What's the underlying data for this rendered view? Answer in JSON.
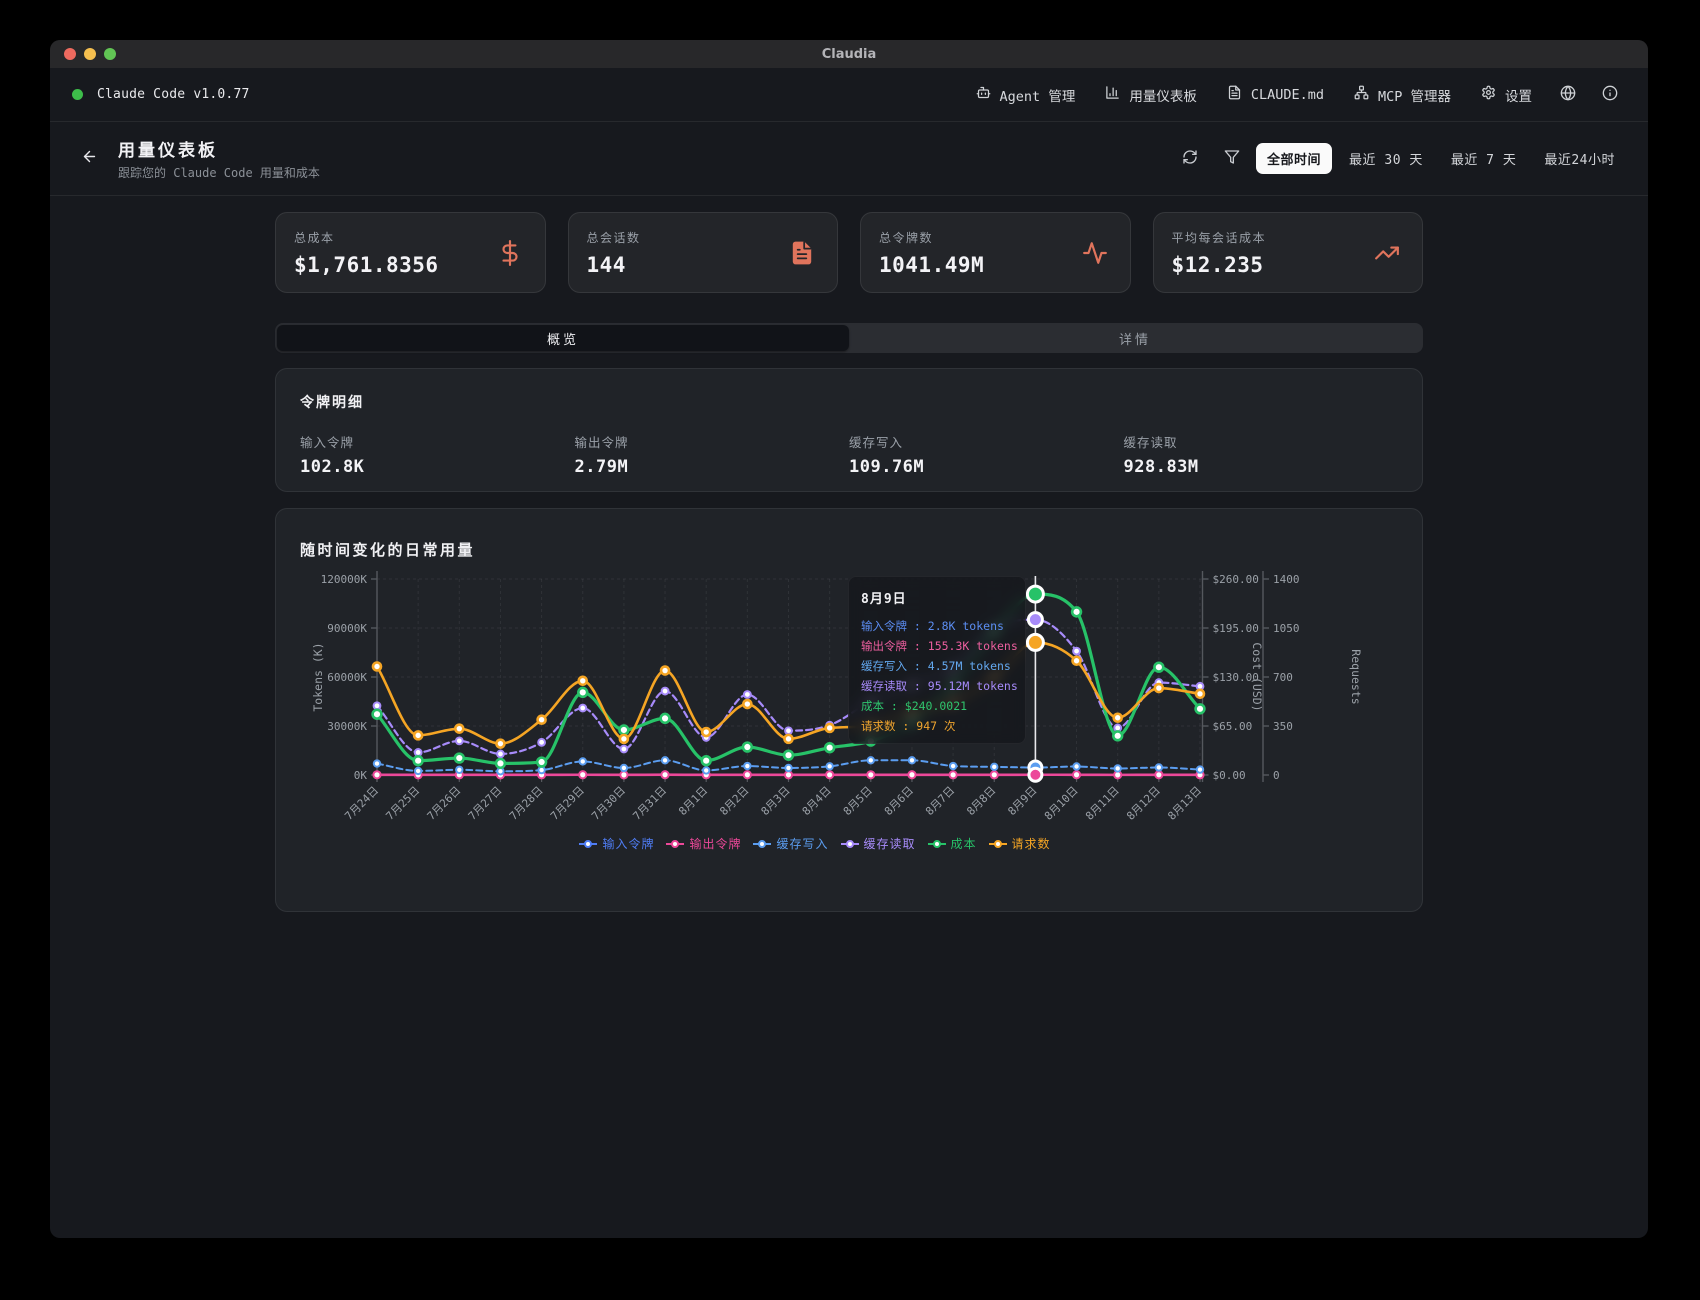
{
  "window": {
    "title": "Claudia"
  },
  "navbar": {
    "app_version": "Claude Code v1.0.77",
    "items": [
      {
        "label": "Agent 管理",
        "icon": "bot-icon"
      },
      {
        "label": "用量仪表板",
        "icon": "bar-chart-icon"
      },
      {
        "label": "CLAUDE.md",
        "icon": "file-text-icon"
      },
      {
        "label": "MCP 管理器",
        "icon": "network-icon"
      },
      {
        "label": "设置",
        "icon": "gear-icon"
      }
    ]
  },
  "header": {
    "title": "用量仪表板",
    "subtitle": "跟踪您的 Claude Code 用量和成本",
    "time_ranges": [
      {
        "label": "全部时间",
        "active": true
      },
      {
        "label": "最近 30 天",
        "active": false
      },
      {
        "label": "最近 7 天",
        "active": false
      },
      {
        "label": "最近24小时",
        "active": false
      }
    ]
  },
  "stats": [
    {
      "label": "总成本",
      "value": "$1,761.8356",
      "icon": "dollar-sign-icon"
    },
    {
      "label": "总会话数",
      "value": "144",
      "icon": "file-text-icon"
    },
    {
      "label": "总令牌数",
      "value": "1041.49M",
      "icon": "activity-icon"
    },
    {
      "label": "平均每会话成本",
      "value": "$12.235",
      "icon": "trending-up-icon"
    }
  ],
  "tabs": [
    {
      "label": "概览",
      "active": true
    },
    {
      "label": "详情",
      "active": false
    }
  ],
  "token_breakdown": {
    "title": "令牌明细",
    "items": [
      {
        "label": "输入令牌",
        "value": "102.8K"
      },
      {
        "label": "输出令牌",
        "value": "2.79M"
      },
      {
        "label": "缓存写入",
        "value": "109.76M"
      },
      {
        "label": "缓存读取",
        "value": "928.83M"
      }
    ]
  },
  "chart_data": {
    "type": "line",
    "title": "随时间变化的日常用量",
    "x": [
      "7月24日",
      "7月25日",
      "7月26日",
      "7月27日",
      "7月28日",
      "7月29日",
      "7月30日",
      "7月31日",
      "8月1日",
      "8月2日",
      "8月3日",
      "8月4日",
      "8月5日",
      "8月6日",
      "8月7日",
      "8月8日",
      "8月9日",
      "8月10日",
      "8月11日",
      "8月12日",
      "8月13日"
    ],
    "axes": {
      "tokens": {
        "label": "Tokens (K)",
        "ticks": [
          "0K",
          "30000K",
          "60000K",
          "90000K",
          "120000K"
        ],
        "min": 0,
        "max": 120000,
        "side": "left"
      },
      "cost": {
        "label": "Cost (USD)",
        "ticks": [
          "$0.00",
          "$65.00",
          "$130.00",
          "$195.00",
          "$260.00"
        ],
        "min": 0,
        "max": 260,
        "side": "right"
      },
      "requests": {
        "label": "Requests",
        "ticks": [
          "0",
          "350",
          "700",
          "1050",
          "1400"
        ],
        "min": 0,
        "max": 1400,
        "side": "right"
      }
    },
    "grid": true,
    "legend_position": "bottom",
    "series": [
      {
        "name": "输入令牌",
        "color": "#4f7df5",
        "axis": "tokens",
        "unit": "K tokens",
        "dash": true,
        "width": 2,
        "dot": 2.5,
        "values": [
          6,
          3,
          4,
          3,
          4,
          8,
          4,
          9,
          4,
          6,
          4,
          5,
          6,
          6,
          5,
          4,
          2.8,
          5,
          3,
          5,
          4
        ]
      },
      {
        "name": "输出令牌",
        "color": "#ec4899",
        "axis": "tokens",
        "unit": "K tokens",
        "dash": false,
        "width": 2.6,
        "dot": 3.6,
        "values": [
          120,
          95,
          110,
          85,
          105,
          160,
          90,
          170,
          100,
          140,
          95,
          120,
          130,
          140,
          110,
          105,
          155.3,
          140,
          80,
          120,
          110
        ]
      },
      {
        "name": "缓存写入",
        "color": "#5b9df0",
        "axis": "tokens",
        "unit": "K tokens",
        "dash": true,
        "width": 2,
        "dot": 3.2,
        "values": [
          7000,
          2500,
          3200,
          2300,
          3000,
          8300,
          4300,
          9000,
          2800,
          5500,
          4300,
          5300,
          9000,
          9000,
          5500,
          5000,
          4570,
          5200,
          4000,
          4600,
          3300
        ]
      },
      {
        "name": "缓存读取",
        "color": "#a78bfa",
        "axis": "tokens",
        "unit": "K tokens",
        "dash": true,
        "width": 2.2,
        "dot": 3.4,
        "values": [
          42400,
          13800,
          20900,
          12900,
          20000,
          41000,
          15900,
          51400,
          23000,
          49300,
          27100,
          30500,
          45000,
          55000,
          65000,
          90000,
          95120,
          75850,
          28800,
          56600,
          54300
        ]
      },
      {
        "name": "成本",
        "color": "#27c268",
        "axis": "cost",
        "unit": "USD",
        "dash": false,
        "width": 3.2,
        "dot": 4.4,
        "values": [
          80.6,
          19,
          22.5,
          15.4,
          17.2,
          109.6,
          59.7,
          75.1,
          19,
          37.1,
          26.3,
          36.2,
          45,
          70,
          120,
          190,
          240.0021,
          216.4,
          52,
          143,
          87.8
        ]
      },
      {
        "name": "请求数",
        "color": "#f5a524",
        "axis": "requests",
        "unit": "requests",
        "dash": false,
        "width": 2.6,
        "dot": 4,
        "values": [
          775,
          283,
          331,
          224,
          395,
          673,
          258,
          746,
          307,
          507,
          258,
          336,
          350,
          450,
          520,
          700,
          947,
          816,
          409,
          621,
          580
        ]
      }
    ],
    "highlight": {
      "x_index": 16
    }
  },
  "tooltip": {
    "title": "8月9日",
    "rows": [
      {
        "label": "输入令牌",
        "value": "2.8K tokens",
        "color": "#5c8df2"
      },
      {
        "label": "输出令牌",
        "value": "155.3K tokens",
        "color": "#ec5f9f"
      },
      {
        "label": "缓存写入",
        "value": "4.57M tokens",
        "color": "#63a8ef"
      },
      {
        "label": "缓存读取",
        "value": "95.12M tokens",
        "color": "#a78bfa"
      },
      {
        "label": "成本",
        "value": "$240.0021",
        "color": "#2fc56e"
      },
      {
        "label": "请求数",
        "value": "947 次",
        "color": "#f0a52f"
      }
    ]
  }
}
